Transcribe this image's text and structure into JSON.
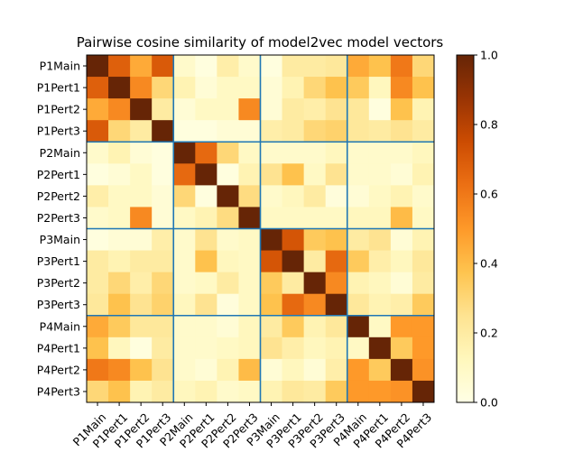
{
  "chart_data": {
    "type": "heatmap",
    "title": "Pairwise cosine similarity of model2vec model vectors",
    "labels": [
      "P1Main",
      "P1Pert1",
      "P1Pert2",
      "P1Pert3",
      "P2Main",
      "P2Pert1",
      "P2Pert2",
      "P2Pert3",
      "P3Main",
      "P3Pert1",
      "P3Pert2",
      "P3Pert3",
      "P4Main",
      "P4Pert1",
      "P4Pert2",
      "P4Pert3"
    ],
    "matrix": [
      [
        1.0,
        0.68,
        0.45,
        0.7,
        0.08,
        0.02,
        0.18,
        0.08,
        0.02,
        0.2,
        0.2,
        0.22,
        0.45,
        0.38,
        0.6,
        0.3
      ],
      [
        0.68,
        1.0,
        0.55,
        0.3,
        0.15,
        0.05,
        0.1,
        0.1,
        0.05,
        0.15,
        0.3,
        0.38,
        0.35,
        0.12,
        0.55,
        0.38
      ],
      [
        0.45,
        0.55,
        1.0,
        0.2,
        0.05,
        0.1,
        0.1,
        0.55,
        0.05,
        0.2,
        0.18,
        0.25,
        0.22,
        0.02,
        0.38,
        0.15
      ],
      [
        0.7,
        0.3,
        0.2,
        1.0,
        0.02,
        0.02,
        0.05,
        0.05,
        0.18,
        0.2,
        0.3,
        0.32,
        0.22,
        0.2,
        0.25,
        0.2
      ],
      [
        0.08,
        0.15,
        0.05,
        0.02,
        1.0,
        0.65,
        0.3,
        0.1,
        0.08,
        0.08,
        0.08,
        0.12,
        0.08,
        0.08,
        0.08,
        0.12
      ],
      [
        0.02,
        0.05,
        0.1,
        0.02,
        0.65,
        1.0,
        0.02,
        0.15,
        0.25,
        0.38,
        0.1,
        0.25,
        0.08,
        0.08,
        0.05,
        0.15
      ],
      [
        0.18,
        0.1,
        0.1,
        0.05,
        0.3,
        0.02,
        1.0,
        0.28,
        0.08,
        0.12,
        0.2,
        0.03,
        0.05,
        0.1,
        0.15,
        0.08
      ],
      [
        0.08,
        0.1,
        0.55,
        0.05,
        0.1,
        0.15,
        0.28,
        1.0,
        0.1,
        0.1,
        0.1,
        0.1,
        0.12,
        0.12,
        0.4,
        0.1
      ],
      [
        0.02,
        0.05,
        0.05,
        0.18,
        0.08,
        0.25,
        0.08,
        0.1,
        1.0,
        0.72,
        0.35,
        0.38,
        0.2,
        0.25,
        0.05,
        0.15
      ],
      [
        0.2,
        0.15,
        0.2,
        0.2,
        0.08,
        0.38,
        0.12,
        0.1,
        0.72,
        1.0,
        0.2,
        0.65,
        0.35,
        0.18,
        0.12,
        0.22
      ],
      [
        0.2,
        0.3,
        0.18,
        0.3,
        0.08,
        0.1,
        0.2,
        0.1,
        0.35,
        0.2,
        1.0,
        0.55,
        0.15,
        0.12,
        0.05,
        0.2
      ],
      [
        0.22,
        0.38,
        0.25,
        0.32,
        0.12,
        0.25,
        0.03,
        0.1,
        0.38,
        0.65,
        0.55,
        1.0,
        0.22,
        0.15,
        0.18,
        0.35
      ],
      [
        0.45,
        0.35,
        0.22,
        0.22,
        0.08,
        0.08,
        0.05,
        0.12,
        0.2,
        0.35,
        0.15,
        0.22,
        1.0,
        0.1,
        0.5,
        0.5
      ],
      [
        0.38,
        0.12,
        0.02,
        0.2,
        0.08,
        0.08,
        0.1,
        0.12,
        0.25,
        0.18,
        0.12,
        0.15,
        0.1,
        1.0,
        0.35,
        0.5
      ],
      [
        0.6,
        0.55,
        0.38,
        0.25,
        0.08,
        0.05,
        0.15,
        0.4,
        0.05,
        0.12,
        0.05,
        0.18,
        0.5,
        0.35,
        1.0,
        0.52
      ],
      [
        0.3,
        0.38,
        0.15,
        0.2,
        0.12,
        0.15,
        0.08,
        0.1,
        0.15,
        0.22,
        0.2,
        0.35,
        0.5,
        0.5,
        0.52,
        1.0
      ]
    ],
    "colorbar": {
      "range": [
        0.0,
        1.0
      ],
      "ticks": [
        "0.0",
        "0.2",
        "0.4",
        "0.6",
        "0.8",
        "1.0"
      ],
      "colormap": "YlOrBr"
    },
    "group_size": 4,
    "grid_line_color": "#1f77b4"
  }
}
